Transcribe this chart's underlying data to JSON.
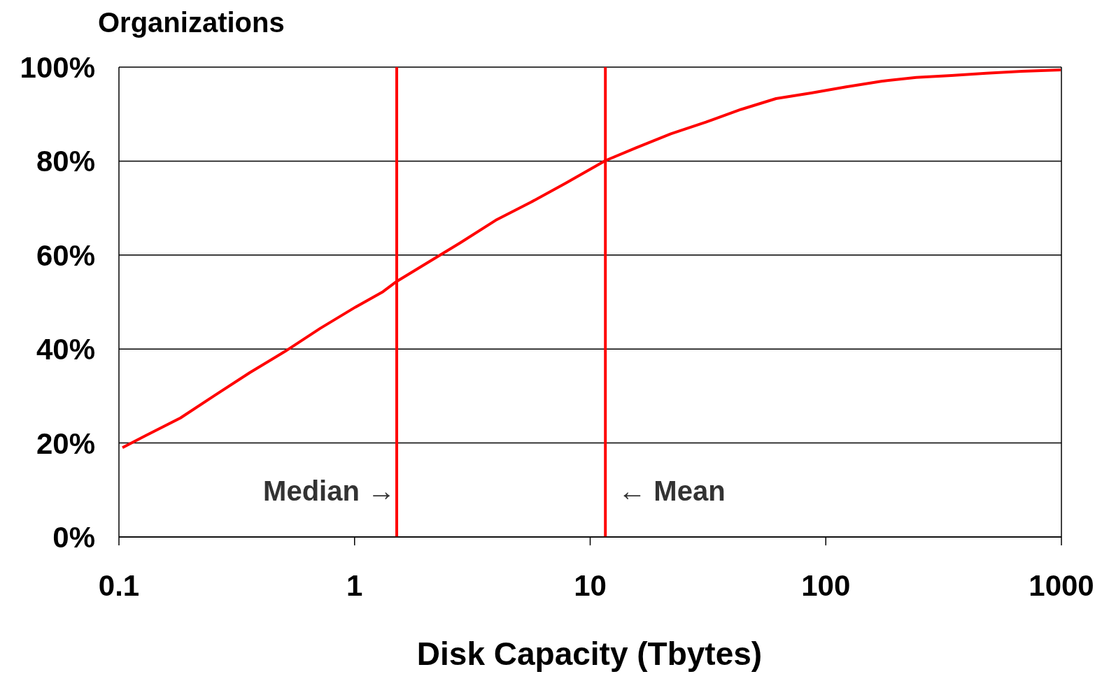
{
  "chart_data": {
    "type": "line",
    "ylabel": "Organizations",
    "xlabel": "Disk Capacity (Tbytes)",
    "x": [
      0.1035,
      0.129,
      0.182,
      0.256,
      0.36,
      0.507,
      0.715,
      1.007,
      1.32,
      1.51,
      2.0,
      2.81,
      3.97,
      5.58,
      7.87,
      11.6,
      15.6,
      22,
      31,
      43.7,
      61.5,
      86.7,
      122,
      172,
      242,
      341,
      480,
      677,
      994
    ],
    "series": [
      {
        "color": "#ff0000",
        "values": [
          19,
          21.5,
          25.3,
          30.2,
          35,
          39.5,
          44.4,
          48.9,
          52.2,
          54.4,
          58.1,
          62.6,
          67.4,
          71.2,
          75.3,
          80.1,
          82.8,
          85.8,
          88.3,
          91,
          93.3,
          94.5,
          95.8,
          97,
          97.8,
          98.2,
          98.7,
          99.1,
          99.4
        ]
      }
    ],
    "log": "x",
    "xlim": [
      0.1,
      1000
    ],
    "xticks": [
      0.1,
      1,
      10,
      100,
      1000
    ],
    "ylim": [
      0,
      100
    ],
    "yticks": [
      {
        "value": 0,
        "label": "0%"
      },
      {
        "value": 20,
        "label": "20%"
      },
      {
        "value": 40,
        "label": "40%"
      },
      {
        "value": 60,
        "label": "60%"
      },
      {
        "value": 80,
        "label": "80%"
      },
      {
        "value": 100,
        "label": "100%"
      }
    ],
    "grid": "y",
    "ref_lines": [
      {
        "axis": "x",
        "value": 1.51,
        "label": "Median →",
        "color": "#ff0000"
      },
      {
        "axis": "x",
        "value": 11.6,
        "label": "← Mean",
        "color": "#ff0000"
      }
    ]
  }
}
